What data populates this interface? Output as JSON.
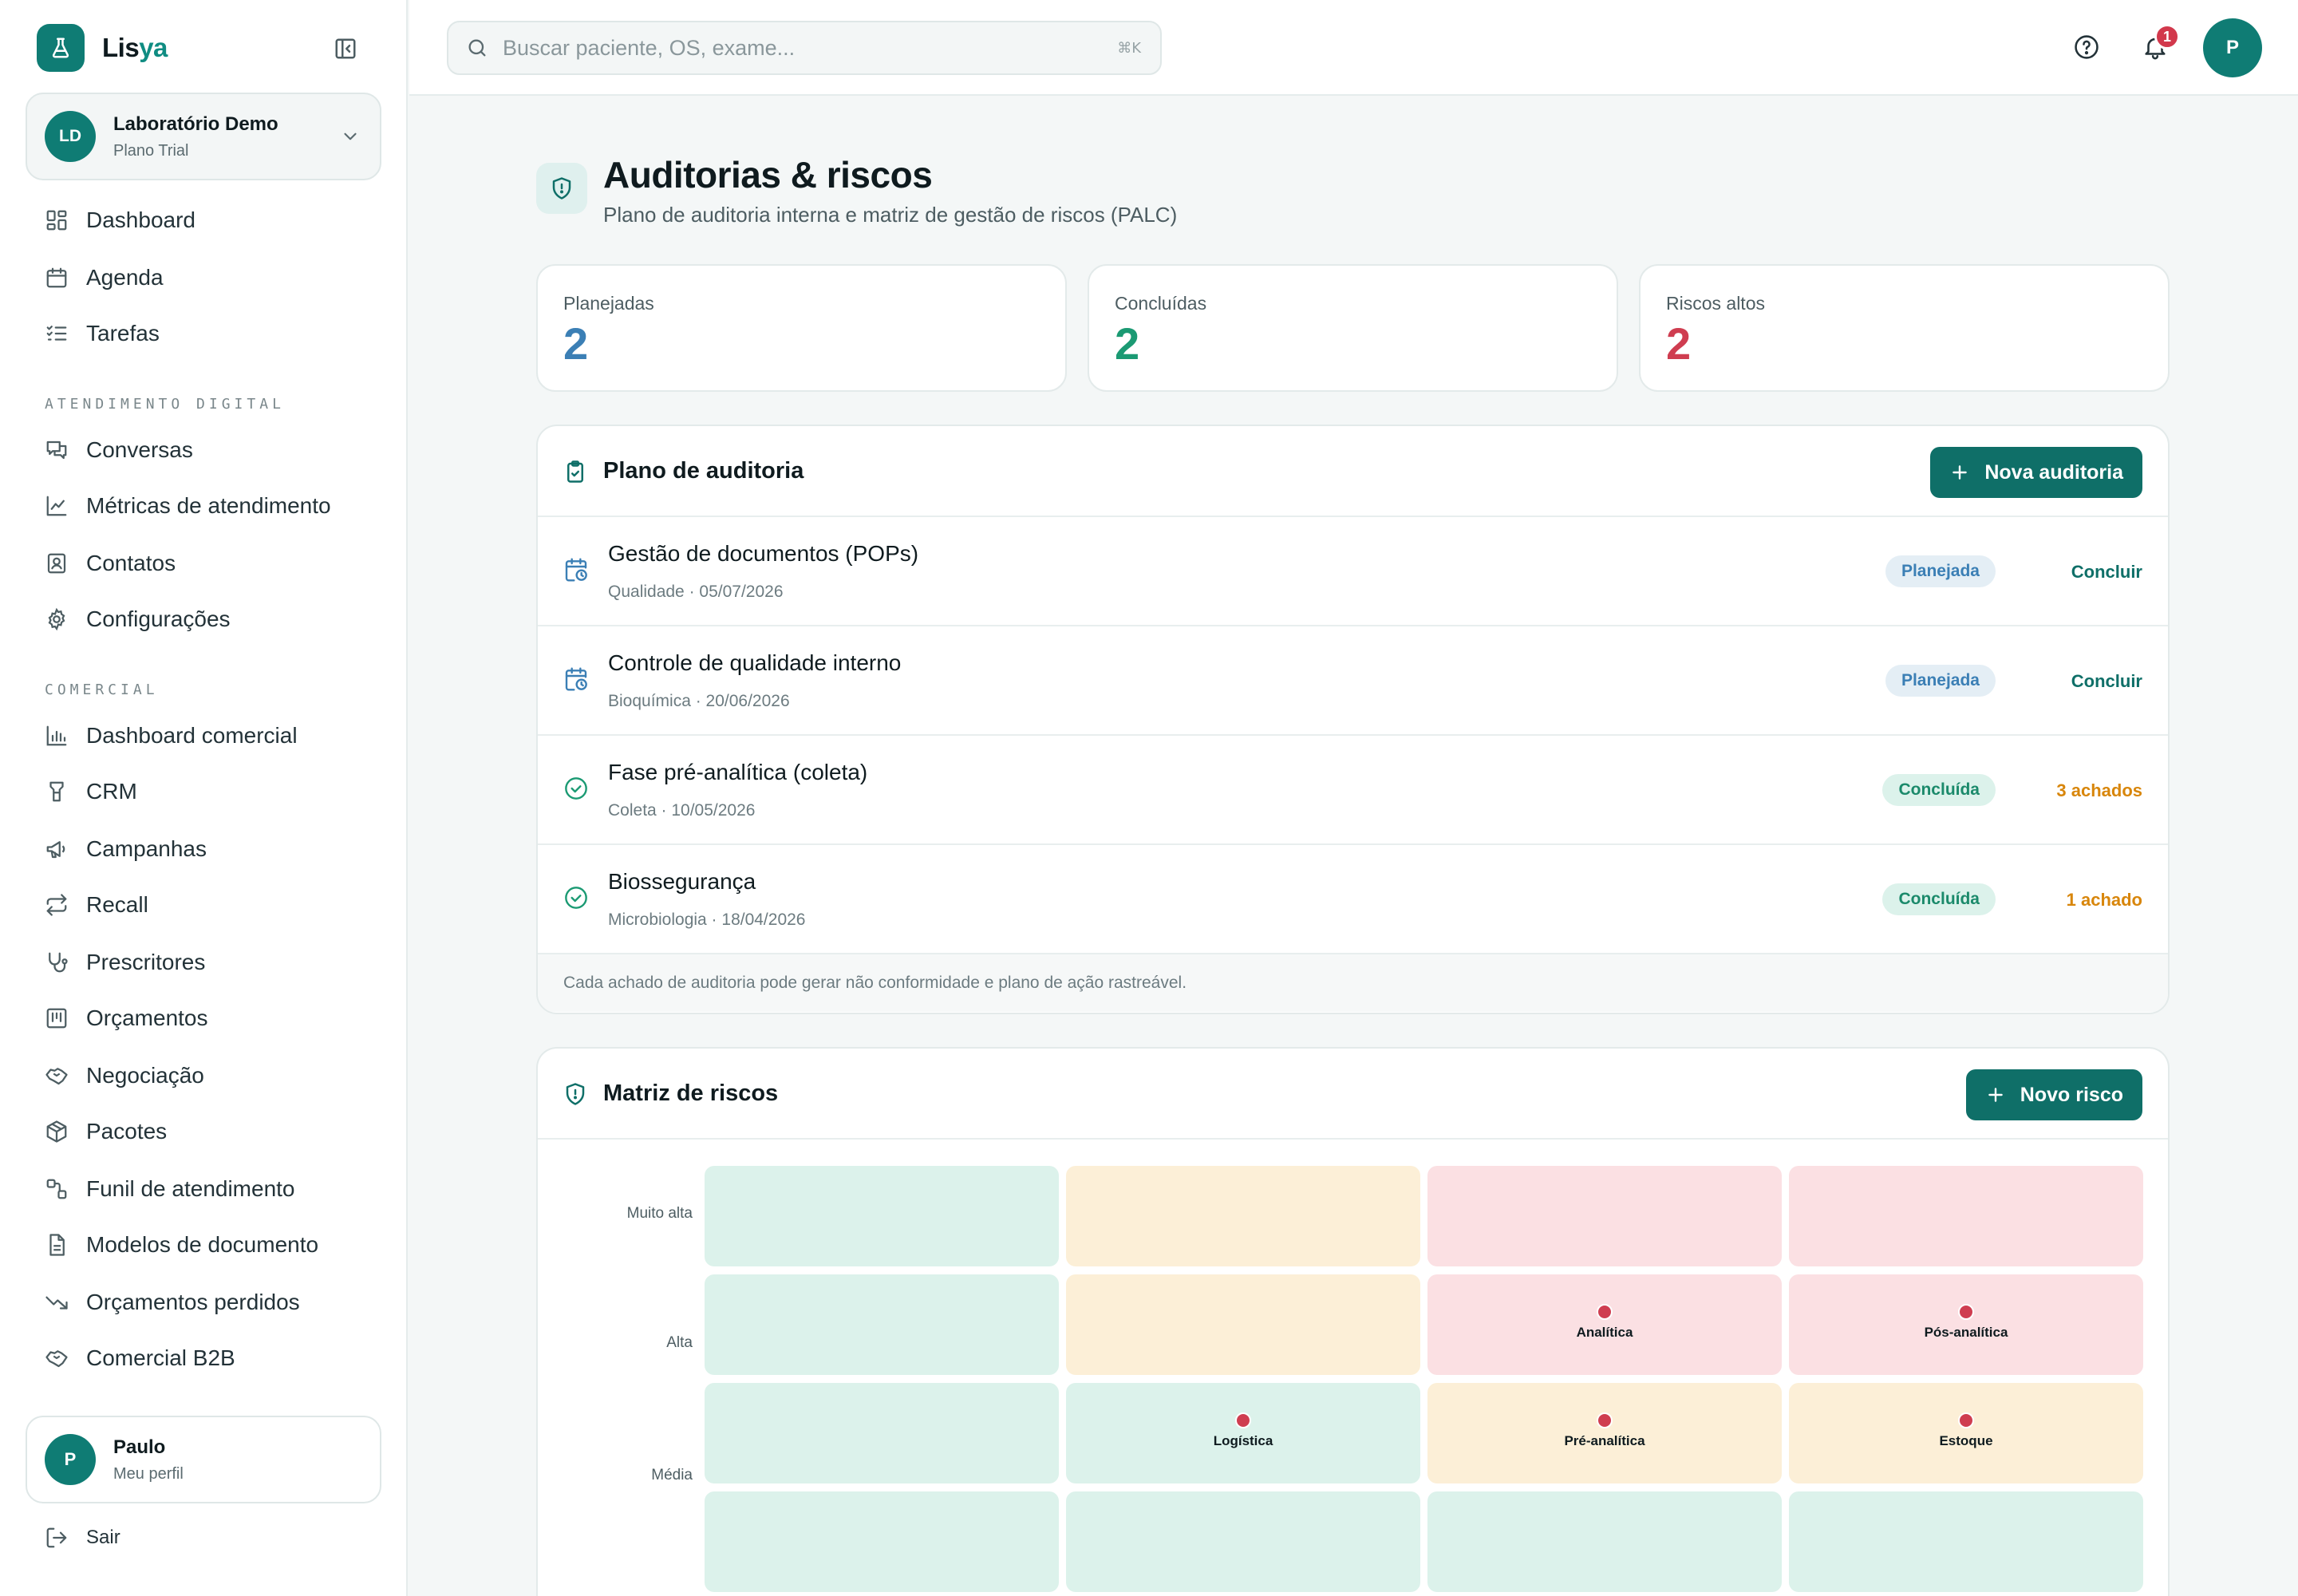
{
  "brand": {
    "name_main": "Lis",
    "name_accent": "ya"
  },
  "org": {
    "initials": "LD",
    "name": "Laboratório Demo",
    "plan": "Plano Trial"
  },
  "nav": {
    "main": [
      {
        "label": "Dashboard",
        "icon": "dashboard-grid-icon"
      },
      {
        "label": "Agenda",
        "icon": "calendar-icon"
      },
      {
        "label": "Tarefas",
        "icon": "checklist-icon"
      }
    ],
    "section_digital": "Atendimento digital",
    "digital": [
      {
        "label": "Conversas",
        "icon": "chat-bubbles-icon"
      },
      {
        "label": "Métricas de atendimento",
        "icon": "line-chart-icon"
      },
      {
        "label": "Contatos",
        "icon": "contact-card-icon"
      },
      {
        "label": "Configurações",
        "icon": "gear-icon"
      }
    ],
    "section_comercial": "Comercial",
    "comercial": [
      {
        "label": "Dashboard comercial",
        "icon": "bar-chart-icon"
      },
      {
        "label": "CRM",
        "icon": "crm-icon"
      },
      {
        "label": "Campanhas",
        "icon": "megaphone-icon"
      },
      {
        "label": "Recall",
        "icon": "repeat-arrows-icon"
      },
      {
        "label": "Prescritores",
        "icon": "stethoscope-icon"
      },
      {
        "label": "Orçamentos",
        "icon": "receipt-icon"
      },
      {
        "label": "Negociação",
        "icon": "handshake-icon"
      },
      {
        "label": "Pacotes",
        "icon": "package-icon"
      },
      {
        "label": "Funil de atendimento",
        "icon": "funnel-flow-icon"
      },
      {
        "label": "Modelos de documento",
        "icon": "document-icon"
      },
      {
        "label": "Orçamentos perdidos",
        "icon": "trending-down-icon"
      },
      {
        "label": "Comercial B2B",
        "icon": "handshake-icon"
      }
    ]
  },
  "user": {
    "initial": "P",
    "name": "Paulo",
    "sub": "Meu perfil",
    "logout": "Sair"
  },
  "topbar": {
    "search_placeholder": "Buscar paciente, OS, exame...",
    "search_kbd": "⌘K",
    "notifications": "1",
    "avatar": "P"
  },
  "page": {
    "title": "Auditorias & riscos",
    "subtitle": "Plano de auditoria interna e matriz de gestão de riscos (PALC)"
  },
  "stats": [
    {
      "label": "Planejadas",
      "value": "2",
      "color": "#3b7fb5"
    },
    {
      "label": "Concluídas",
      "value": "2",
      "color": "#1b9a73"
    },
    {
      "label": "Riscos altos",
      "value": "2",
      "color": "#cf3d50"
    }
  ],
  "audit": {
    "title": "Plano de auditoria",
    "new_button": "Nova auditoria",
    "rows": [
      {
        "title": "Gestão de documentos (POPs)",
        "meta": "Qualidade · 05/07/2026",
        "status": "Planejada",
        "action": "Concluir"
      },
      {
        "title": "Controle de qualidade interno",
        "meta": "Bioquímica · 20/06/2026",
        "status": "Planejada",
        "action": "Concluir"
      },
      {
        "title": "Fase pré-analítica (coleta)",
        "meta": "Coleta · 10/05/2026",
        "status": "Concluída",
        "action": "3 achados"
      },
      {
        "title": "Biossegurança",
        "meta": "Microbiologia · 18/04/2026",
        "status": "Concluída",
        "action": "1 achado"
      }
    ],
    "footer": "Cada achado de auditoria pode gerar não conformidade e plano de ação rastreável."
  },
  "risks": {
    "title": "Matriz de riscos",
    "new_button": "Novo risco",
    "row_labels": [
      "Muito alta",
      "Alta",
      "Média"
    ],
    "items": [
      {
        "label": "Analítica"
      },
      {
        "label": "Pós-analítica"
      },
      {
        "label": "Logística"
      },
      {
        "label": "Pré-analítica"
      },
      {
        "label": "Estoque"
      }
    ]
  }
}
